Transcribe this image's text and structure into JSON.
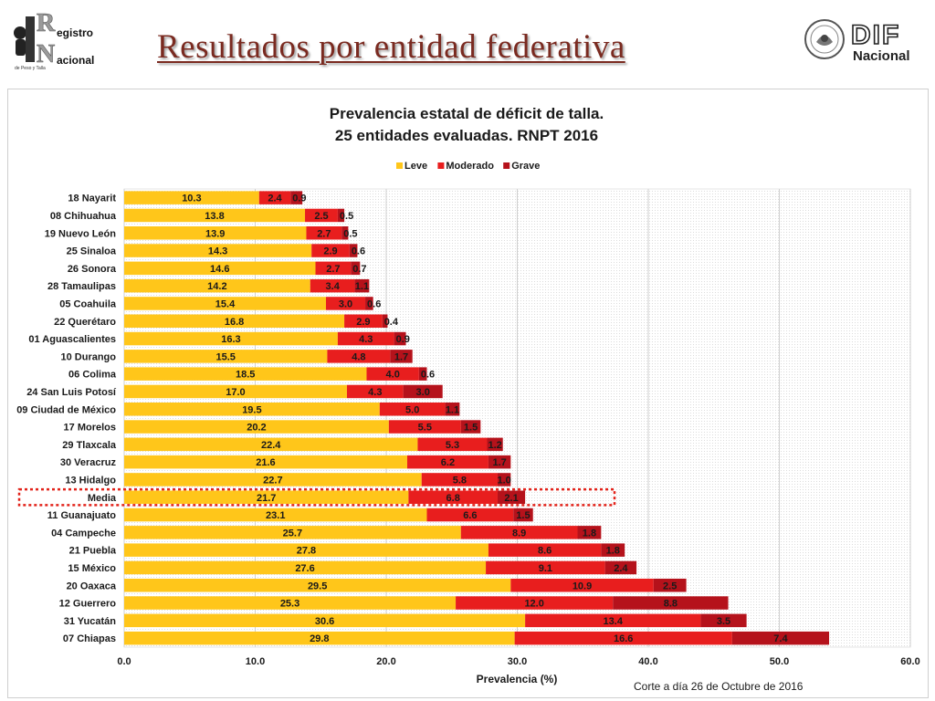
{
  "header": {
    "title": "Resultados por entidad federativa",
    "logo_left": {
      "line1": "egistro",
      "line2": "acional",
      "initial1": "R",
      "initial2": "N",
      "subtext": "de Peso y Talla"
    },
    "logo_right": {
      "name": "DIF",
      "sub": "Nacional"
    }
  },
  "footnote": "Corte a día 26 de Octubre de 2016",
  "chart_data": {
    "type": "bar",
    "orientation": "horizontal",
    "stacked": true,
    "title": "Prevalencia estatal de déficit de talla.",
    "subtitle": "25 entidades evaluadas. RNPT 2016",
    "xlabel": "Prevalencia (%)",
    "ylabel": "",
    "xlim": [
      0,
      60
    ],
    "xticks": [
      "0.0",
      "10.0",
      "20.0",
      "30.0",
      "40.0",
      "50.0",
      "60.0"
    ],
    "grid": true,
    "legend_position": "top",
    "highlight_category": "Media",
    "categories": [
      "18 Nayarit",
      "08 Chihuahua",
      "19 Nuevo León",
      "25 Sinaloa",
      "26 Sonora",
      "28 Tamaulipas",
      "05 Coahuila",
      "22 Querétaro",
      "01 Aguascalientes",
      "10 Durango",
      "06 Colima",
      "24 San Luis Potosí",
      "09 Ciudad de México",
      "17 Morelos",
      "29 Tlaxcala",
      "30 Veracruz",
      "13 Hidalgo",
      "Media",
      "11 Guanajuato",
      "04 Campeche",
      "21 Puebla",
      "15 México",
      "20 Oaxaca",
      "12 Guerrero",
      "31 Yucatán",
      "07 Chiapas"
    ],
    "series": [
      {
        "name": "Leve",
        "color": "#FFC61A",
        "values": [
          10.3,
          13.8,
          13.9,
          14.3,
          14.6,
          14.2,
          15.4,
          16.8,
          16.3,
          15.5,
          18.5,
          17.0,
          19.5,
          20.2,
          22.4,
          21.6,
          22.7,
          21.7,
          23.1,
          25.7,
          27.8,
          27.6,
          29.5,
          25.3,
          30.6,
          29.8
        ]
      },
      {
        "name": "Moderado",
        "color": "#E81E1E",
        "values": [
          2.4,
          2.5,
          2.7,
          2.9,
          2.7,
          3.4,
          3.0,
          2.9,
          4.3,
          4.8,
          4.0,
          4.3,
          5.0,
          5.5,
          5.3,
          6.2,
          5.8,
          6.8,
          6.6,
          8.9,
          8.6,
          9.1,
          10.9,
          12.0,
          13.4,
          16.6
        ]
      },
      {
        "name": "Grave",
        "color": "#B5121B",
        "values": [
          0.9,
          0.5,
          0.5,
          0.6,
          0.7,
          1.1,
          0.6,
          0.4,
          0.9,
          1.7,
          0.6,
          3.0,
          1.1,
          1.5,
          1.2,
          1.7,
          1.0,
          2.1,
          1.5,
          1.8,
          1.8,
          2.4,
          2.5,
          8.8,
          3.5,
          7.4
        ]
      }
    ]
  }
}
